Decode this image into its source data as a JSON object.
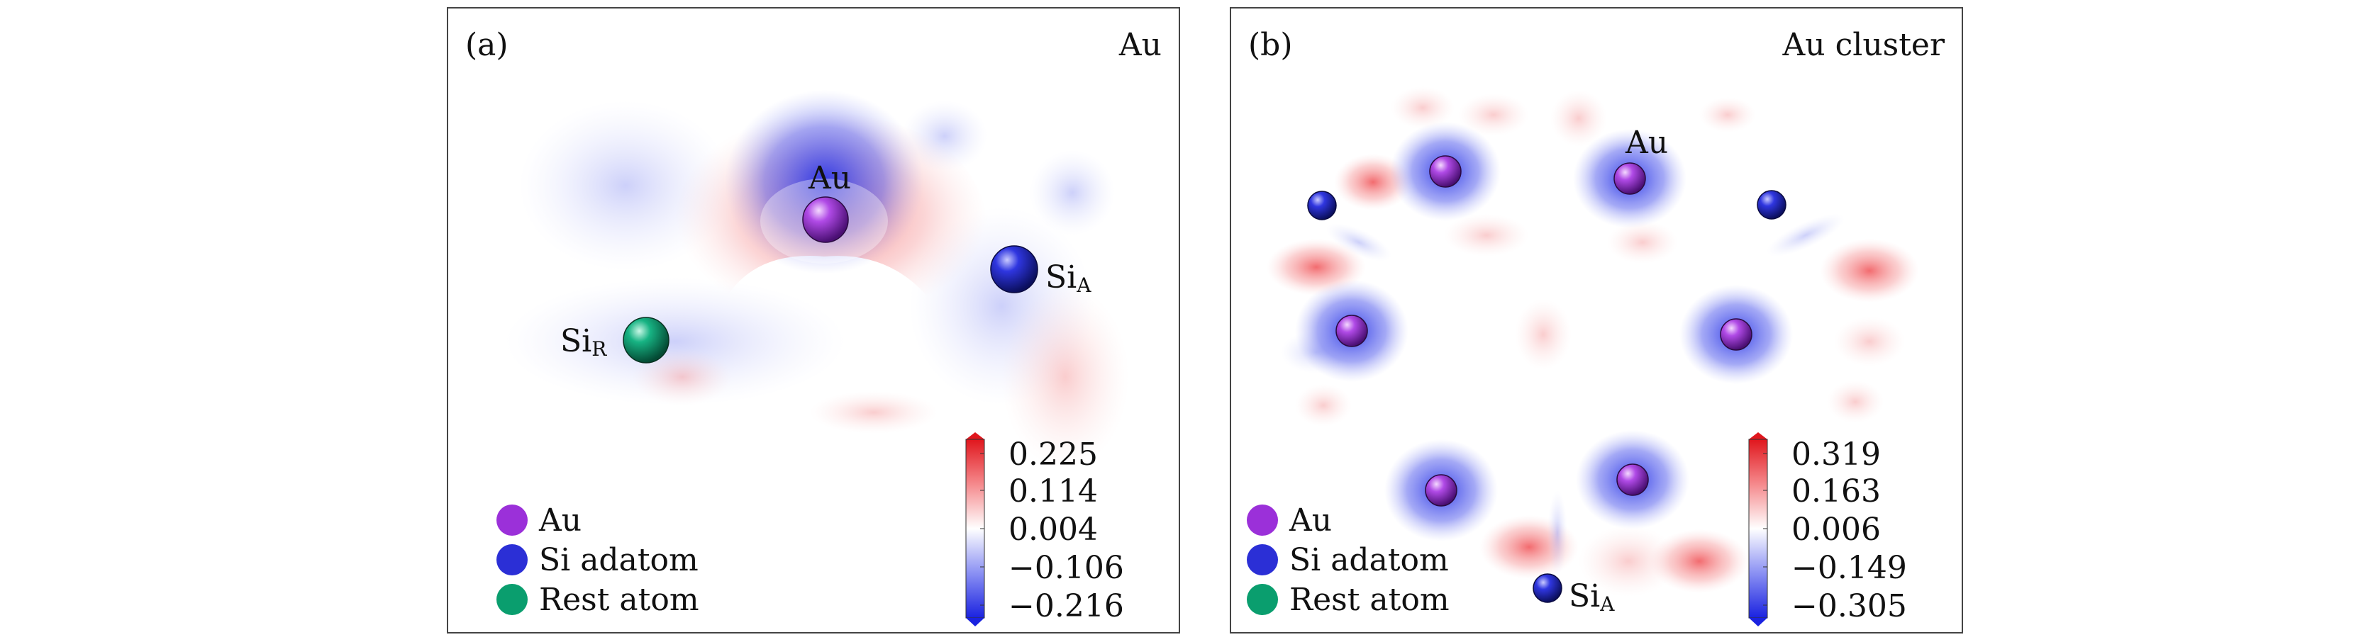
{
  "panels": [
    {
      "id": "a",
      "tag": "(a)",
      "title": "Au",
      "atom_labels": {
        "au": "Au",
        "si_r": "Si",
        "si_r_sub": "R",
        "si_a": "Si",
        "si_a_sub": "A"
      },
      "legend": [
        "Au",
        "Si adatom",
        "Rest atom"
      ],
      "colorbar": {
        "ticks": [
          "0.225",
          "0.114",
          "0.004",
          "−0.106",
          "−0.216"
        ],
        "max": 0.225,
        "min": -0.216
      }
    },
    {
      "id": "b",
      "tag": "(b)",
      "title": "Au cluster",
      "atom_labels": {
        "au": "Au",
        "si_a": "Si",
        "si_a_sub": "A"
      },
      "legend": [
        "Au",
        "Si adatom",
        "Rest atom"
      ],
      "colorbar": {
        "ticks": [
          "0.319",
          "0.163",
          "0.006",
          "−0.149",
          "−0.305"
        ],
        "max": 0.319,
        "min": -0.305
      }
    }
  ],
  "colors": {
    "au": "#9b30d9",
    "si_adatom": "#2b2fd6",
    "rest_atom": "#0a9e6e",
    "positive": "#e8202a",
    "negative": "#1f2de0"
  }
}
